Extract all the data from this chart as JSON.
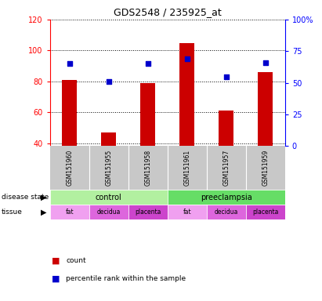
{
  "title": "GDS2548 / 235925_at",
  "samples": [
    "GSM151960",
    "GSM151955",
    "GSM151958",
    "GSM151961",
    "GSM151957",
    "GSM151959"
  ],
  "counts": [
    81,
    47,
    79,
    105,
    61,
    86
  ],
  "percentiles": [
    65,
    51,
    65,
    69,
    55,
    66
  ],
  "ylim_left": [
    38,
    120
  ],
  "ylim_right": [
    0,
    100
  ],
  "yticks_left": [
    40,
    60,
    80,
    100,
    120
  ],
  "yticks_right": [
    0,
    25,
    50,
    75,
    100
  ],
  "yticklabels_right": [
    "0",
    "25",
    "50",
    "75",
    "100%"
  ],
  "bar_color": "#cc0000",
  "scatter_color": "#0000cc",
  "bar_bottom": 38,
  "disease_state_labels": [
    "control",
    "preeclampsia"
  ],
  "disease_state_colors": [
    "#b2f0a0",
    "#66dd66"
  ],
  "tissue_labels": [
    "fat",
    "decidua",
    "placenta",
    "fat",
    "decidua",
    "placenta"
  ],
  "tissue_colors": [
    "#f0a0f0",
    "#dd66dd",
    "#cc44cc",
    "#f0a0f0",
    "#dd66dd",
    "#cc44cc"
  ],
  "grid_color": "black",
  "sample_bg": "#c8c8c8",
  "plot_bg": "white"
}
